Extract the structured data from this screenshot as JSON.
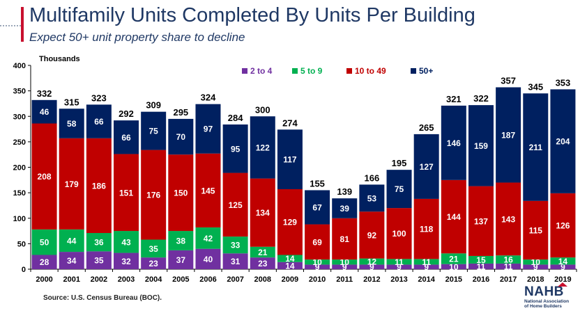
{
  "header": {
    "title": "Multifamily Units Completed By Units Per Building",
    "subtitle": "Expect 50+ unit property share to decline"
  },
  "footer": {
    "source": "Source: U.S. Census Bureau (BOC)."
  },
  "logo": {
    "name": "NAHB",
    "tagline_1": "National Association",
    "tagline_2": "of Home Builders"
  },
  "chart_data": {
    "type": "bar",
    "stacked": true,
    "title": "",
    "ylabel": "Thousands",
    "xlabel": "",
    "ylim": [
      0,
      400
    ],
    "yticks": [
      0,
      50,
      100,
      150,
      200,
      250,
      300,
      350,
      400
    ],
    "grid": false,
    "legend_position": "top",
    "categories": [
      "2000",
      "2001",
      "2002",
      "2003",
      "2004",
      "2005",
      "2006",
      "2007",
      "2008",
      "2009",
      "2010",
      "2011",
      "2012",
      "2013",
      "2014",
      "2015",
      "2016",
      "2017",
      "2018",
      "2019"
    ],
    "totals": [
      332,
      315,
      323,
      292,
      309,
      295,
      324,
      284,
      300,
      274,
      155,
      139,
      166,
      195,
      265,
      321,
      322,
      357,
      345,
      353
    ],
    "series": [
      {
        "name": "2 to 4",
        "color": "#7030a0",
        "values": [
          28,
          34,
          35,
          32,
          23,
          37,
          40,
          31,
          23,
          14,
          9,
          9,
          9,
          9,
          9,
          10,
          11,
          11,
          9,
          9
        ]
      },
      {
        "name": "5 to 9",
        "color": "#00b050",
        "values": [
          50,
          44,
          36,
          43,
          35,
          38,
          42,
          33,
          21,
          14,
          10,
          10,
          12,
          11,
          11,
          21,
          15,
          16,
          10,
          14
        ]
      },
      {
        "name": "10 to 49",
        "color": "#c00000",
        "values": [
          208,
          179,
          186,
          151,
          176,
          150,
          145,
          125,
          134,
          129,
          69,
          81,
          92,
          100,
          118,
          144,
          137,
          143,
          115,
          126
        ]
      },
      {
        "name": "50+",
        "color": "#002060",
        "values": [
          46,
          58,
          66,
          66,
          75,
          70,
          97,
          95,
          122,
          117,
          67,
          39,
          53,
          75,
          127,
          146,
          159,
          187,
          211,
          204
        ]
      }
    ]
  }
}
